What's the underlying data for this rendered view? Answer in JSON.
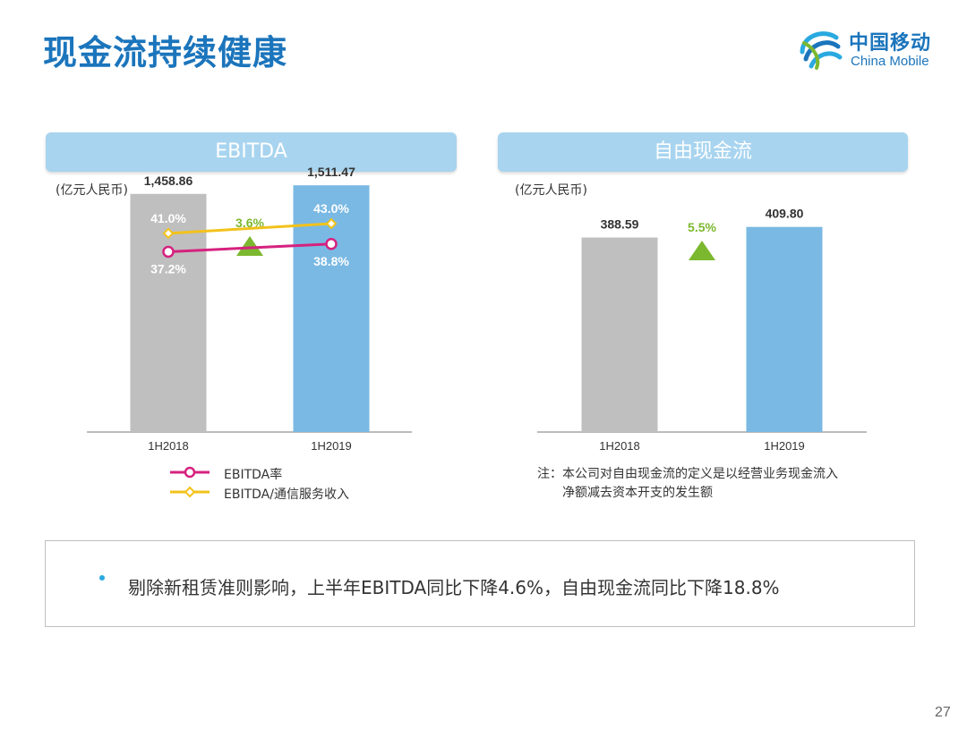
{
  "page": {
    "title": "现金流持续健康",
    "page_number": "27",
    "logo": {
      "cn": "中国移动",
      "en": "China Mobile"
    }
  },
  "colors": {
    "title_blue": "#1b75bc",
    "bar_gray": "#bfbfbf",
    "bar_blue": "#7ab9e3",
    "up_green": "#7cb82f",
    "line_magenta": "#d6217f",
    "line_yellow": "#f2c21b",
    "header_blue": "#a8d4ef"
  },
  "panels": {
    "ebitda": {
      "header": "EBITDA",
      "unit": "(亿元人民币)"
    },
    "fcf": {
      "header": "自由现金流",
      "unit": "(亿元人民币)"
    }
  },
  "legend": {
    "ebitda_margin": "EBITDA率",
    "ebitda_to_service": "EBITDA/通信服务收入"
  },
  "note": {
    "line1": "注：本公司对自由现金流的定义是以经营业务现金流入",
    "line2": "净额减去资本开支的发生额"
  },
  "summary": {
    "bullet_text": "剔除新租赁准则影响，上半年EBITDA同比下降4.6%，自由现金流同比下降18.8%"
  },
  "chart_data": [
    {
      "type": "bar",
      "title": "EBITDA",
      "unit": "(亿元人民币)",
      "categories": [
        "1H2018",
        "1H2019"
      ],
      "values": [
        1458.86,
        1511.47
      ],
      "value_labels": [
        "1,458.86",
        "1,511.47"
      ],
      "growth_label": "3.6%",
      "ylim": [
        0,
        1600
      ],
      "lines": [
        {
          "name": "EBITDA率",
          "values": [
            37.2,
            38.8
          ],
          "labels": [
            "37.2%",
            "38.8%"
          ],
          "marker": "circle"
        },
        {
          "name": "EBITDA/通信服务收入",
          "values": [
            41.0,
            43.0
          ],
          "labels": [
            "41.0%",
            "43.0%"
          ],
          "marker": "diamond"
        }
      ]
    },
    {
      "type": "bar",
      "title": "自由现金流",
      "unit": "(亿元人民币)",
      "categories": [
        "1H2018",
        "1H2019"
      ],
      "values": [
        388.59,
        409.8
      ],
      "value_labels": [
        "388.59",
        "409.80"
      ],
      "growth_label": "5.5%",
      "ylim": [
        0,
        470
      ]
    }
  ]
}
